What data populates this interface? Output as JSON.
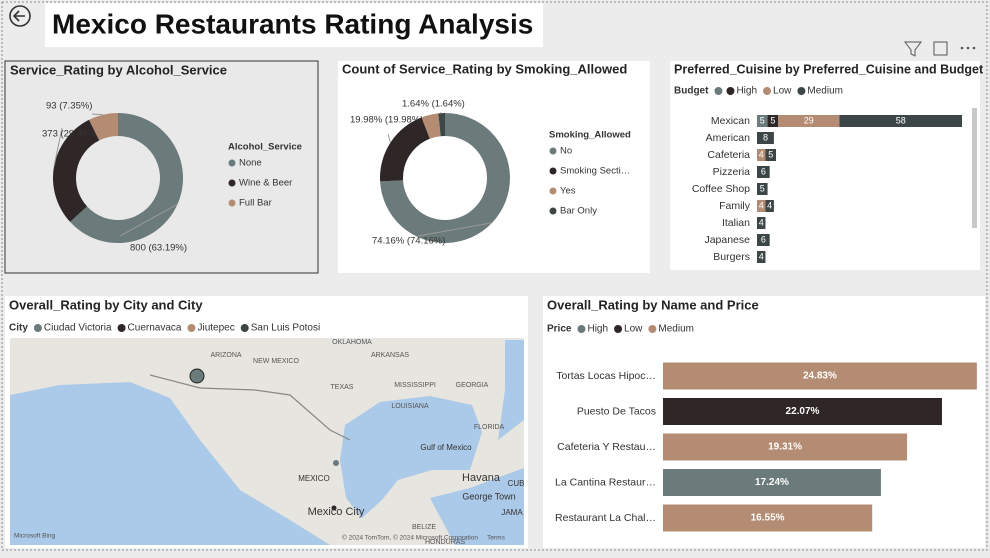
{
  "header": {
    "title": "Mexico Restaurants Rating Analysis"
  },
  "chart_data": [
    {
      "type": "donut",
      "title": "Service_Rating by Alcohol_Service",
      "legend_title": "Alcohol_Service",
      "categories": [
        "None",
        "Wine & Beer",
        "Full Bar"
      ],
      "values": [
        800,
        373,
        93
      ],
      "value_labels": [
        "800 (63.19%)",
        "373 (29.46%)",
        "93 (7.35%)"
      ],
      "colors": [
        "#6b7a7a",
        "#2f2627",
        "#b48c74"
      ]
    },
    {
      "type": "donut",
      "title": "Count of Service_Rating by Smoking_Allowed",
      "legend_title": "Smoking_Allowed",
      "categories": [
        "No",
        "Smoking Secti…",
        "Yes",
        "Bar Only"
      ],
      "values": [
        74.16,
        19.98,
        4.22,
        1.64
      ],
      "value_labels": [
        "74.16% (74.16%)",
        "19.98% (19.98%)",
        null,
        "1.64% (1.64%)"
      ],
      "colors": [
        "#6b7a7a",
        "#2f2627",
        "#b48c74",
        "#3d4646"
      ]
    },
    {
      "type": "stacked-barh",
      "title": "Preferred_Cuisine by Preferred_Cuisine and Budget",
      "legend_title": "Budget",
      "categories": [
        "Mexican",
        "American",
        "Cafeteria",
        "Pizzeria",
        "Coffee Shop",
        "Family",
        "Italian",
        "Japanese",
        "Burgers"
      ],
      "xlim": [
        0,
        97
      ],
      "series": [
        {
          "name": null,
          "color": "#6b7a7a",
          "values": [
            5,
            null,
            null,
            null,
            null,
            null,
            null,
            null,
            null
          ]
        },
        {
          "name": "High",
          "color": "#2f2627",
          "values": [
            5,
            null,
            null,
            null,
            null,
            null,
            null,
            null,
            null
          ]
        },
        {
          "name": "Low",
          "color": "#b48c74",
          "values": [
            29,
            null,
            4,
            null,
            null,
            4,
            null,
            null,
            null
          ]
        },
        {
          "name": "Medium",
          "color": "#3d4646",
          "values": [
            58,
            8,
            5,
            6,
            5,
            4,
            4,
            6,
            4
          ]
        }
      ]
    },
    {
      "type": "map",
      "title": "Overall_Rating by City and City",
      "legend_title": "City",
      "series": [
        {
          "name": "Ciudad Victoria",
          "color": "#6b7a7a"
        },
        {
          "name": "Cuernavaca",
          "color": "#2f2627"
        },
        {
          "name": "Jiutepec",
          "color": "#b48c74"
        },
        {
          "name": "San Luis Potosi",
          "color": "#3d4646"
        }
      ],
      "labels": [
        "OKLAHOMA",
        "ARIZONA",
        "NEW MEXICO",
        "ARKANSAS",
        "TEXAS",
        "MISSISSIPPI",
        "GEORGIA",
        "LOUISIANA",
        "FLORIDA",
        "Gulf of Mexico",
        "MEXICO",
        "Havana",
        "CUB",
        "George Town",
        "JAMA",
        "Mexico City",
        "BELIZE",
        "HONDURAS"
      ],
      "attribution": [
        "Microsoft Bing",
        "© 2024 TomTom, © 2024 Microsoft Corporation",
        "Terms"
      ]
    },
    {
      "type": "barh",
      "title": "Overall_Rating by Name and Price",
      "legend_title": "Price",
      "categories": [
        "Tortas Locas Hipoc…",
        "Puesto De Tacos",
        "Cafeteria Y Restau…",
        "La Cantina Restaur…",
        "Restaurant La Chal…"
      ],
      "xlim": [
        0,
        25
      ],
      "series": [
        {
          "name": "High",
          "color": "#6b7a7a",
          "values": [
            null,
            null,
            null,
            17.24,
            null
          ],
          "value_labels": [
            null,
            null,
            null,
            "17.24%",
            null
          ]
        },
        {
          "name": "Low",
          "color": "#2f2627",
          "values": [
            null,
            22.07,
            null,
            null,
            null
          ],
          "value_labels": [
            null,
            "22.07%",
            null,
            null,
            null
          ]
        },
        {
          "name": "Medium",
          "color": "#b48c74",
          "values": [
            24.83,
            null,
            19.31,
            null,
            16.55
          ],
          "value_labels": [
            "24.83%",
            null,
            "19.31%",
            null,
            "16.55%"
          ]
        }
      ]
    }
  ]
}
